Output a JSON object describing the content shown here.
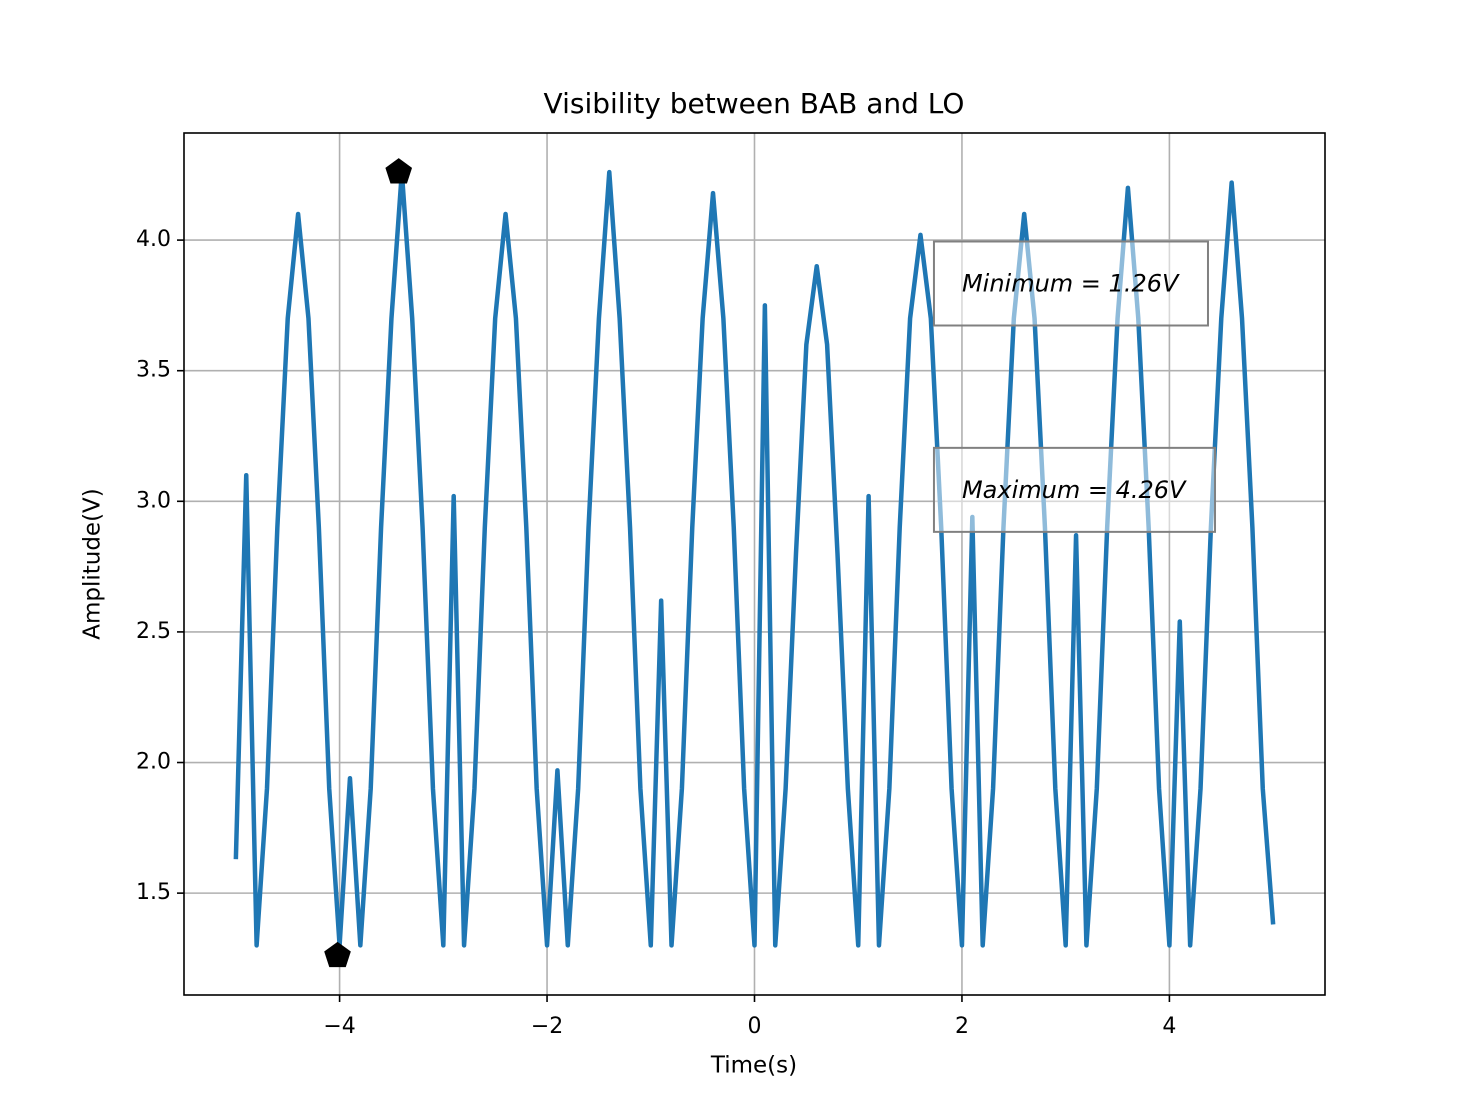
{
  "chart_data": {
    "type": "line",
    "title": "Visibility between BAB and LO",
    "xlabel": "Time(s)",
    "ylabel": "Amplitude(V)",
    "xlim": [
      -5.5,
      5.5
    ],
    "ylim": [
      1.11,
      4.41
    ],
    "xticks": [
      {
        "value": -4,
        "label": "−4"
      },
      {
        "value": -2,
        "label": "−2"
      },
      0,
      2,
      4
    ],
    "yticks": [
      1.5,
      {
        "value": 2,
        "label": "2.0"
      },
      2.5,
      {
        "value": 3,
        "label": "3.0"
      },
      3.5,
      {
        "value": 4,
        "label": "4.0"
      }
    ],
    "grid": true,
    "x": [
      -5.0,
      -4.9,
      -4.8,
      -4.7,
      -4.6,
      -4.5,
      -4.4,
      -4.3,
      -4.2,
      -4.1,
      -4.0,
      -3.9,
      -3.8,
      -3.7,
      -3.6,
      -3.5,
      -3.4,
      -3.3,
      -3.2,
      -3.1,
      -3.0,
      -2.9,
      -2.8,
      -2.7,
      -2.6,
      -2.5,
      -2.4,
      -2.3,
      -2.2,
      -2.1,
      -2.0,
      -1.9,
      -1.8,
      -1.7,
      -1.6,
      -1.5,
      -1.4,
      -1.3,
      -1.2,
      -1.1,
      -1.0,
      -0.9,
      -0.8,
      -0.7,
      -0.6,
      -0.5,
      -0.4,
      -0.3,
      -0.2,
      -0.1,
      0.0,
      0.1,
      0.2,
      0.3,
      0.4,
      0.5,
      0.6,
      0.7,
      0.8,
      0.9,
      1.0,
      1.1,
      1.2,
      1.3,
      1.4,
      1.5,
      1.6,
      1.7,
      1.8,
      1.9,
      2.0,
      2.1,
      2.2,
      2.3,
      2.4,
      2.5,
      2.6,
      2.7,
      2.8,
      2.9,
      3.0,
      3.1,
      3.2,
      3.3,
      3.4,
      3.5,
      3.6,
      3.7,
      3.8,
      3.9,
      4.0,
      4.1,
      4.2,
      4.3,
      4.4,
      4.5,
      4.6,
      4.7,
      4.8,
      4.9,
      5.0
    ],
    "series": [
      {
        "color": "#1f77b4",
        "values": [
          1.63,
          3.1,
          1.3,
          1.9,
          2.9,
          3.7,
          4.1,
          3.7,
          2.9,
          1.9,
          1.3,
          1.94,
          1.3,
          1.9,
          2.9,
          3.7,
          4.26,
          3.7,
          2.9,
          1.9,
          1.3,
          3.02,
          1.3,
          1.9,
          2.9,
          3.7,
          4.1,
          3.7,
          2.9,
          1.9,
          1.3,
          1.97,
          1.3,
          1.9,
          2.9,
          3.7,
          4.26,
          3.7,
          2.9,
          1.9,
          1.3,
          2.62,
          1.3,
          1.9,
          2.9,
          3.7,
          4.18,
          3.7,
          2.9,
          1.9,
          1.3,
          3.75,
          1.3,
          1.9,
          2.8,
          3.6,
          3.9,
          3.6,
          2.8,
          1.9,
          1.3,
          3.02,
          1.3,
          1.9,
          2.9,
          3.7,
          4.02,
          3.7,
          2.9,
          1.9,
          1.3,
          2.94,
          1.3,
          1.9,
          2.9,
          3.7,
          4.1,
          3.7,
          2.9,
          1.9,
          1.3,
          2.87,
          1.3,
          1.9,
          2.9,
          3.7,
          4.2,
          3.7,
          2.9,
          1.9,
          1.3,
          2.54,
          1.3,
          1.9,
          2.9,
          3.7,
          4.22,
          3.7,
          2.9,
          1.9,
          1.38
        ]
      }
    ],
    "markers": {
      "color": "#000000",
      "x": [
        -3.43,
        -4.02
      ],
      "values": [
        4.26,
        1.26
      ]
    },
    "annotations": [
      {
        "text": "Minimum = 1.26V",
        "x": 2,
        "y": 3.83
      },
      {
        "text": "Maximum = 4.26V",
        "x": 2,
        "y": 3.04
      }
    ]
  }
}
